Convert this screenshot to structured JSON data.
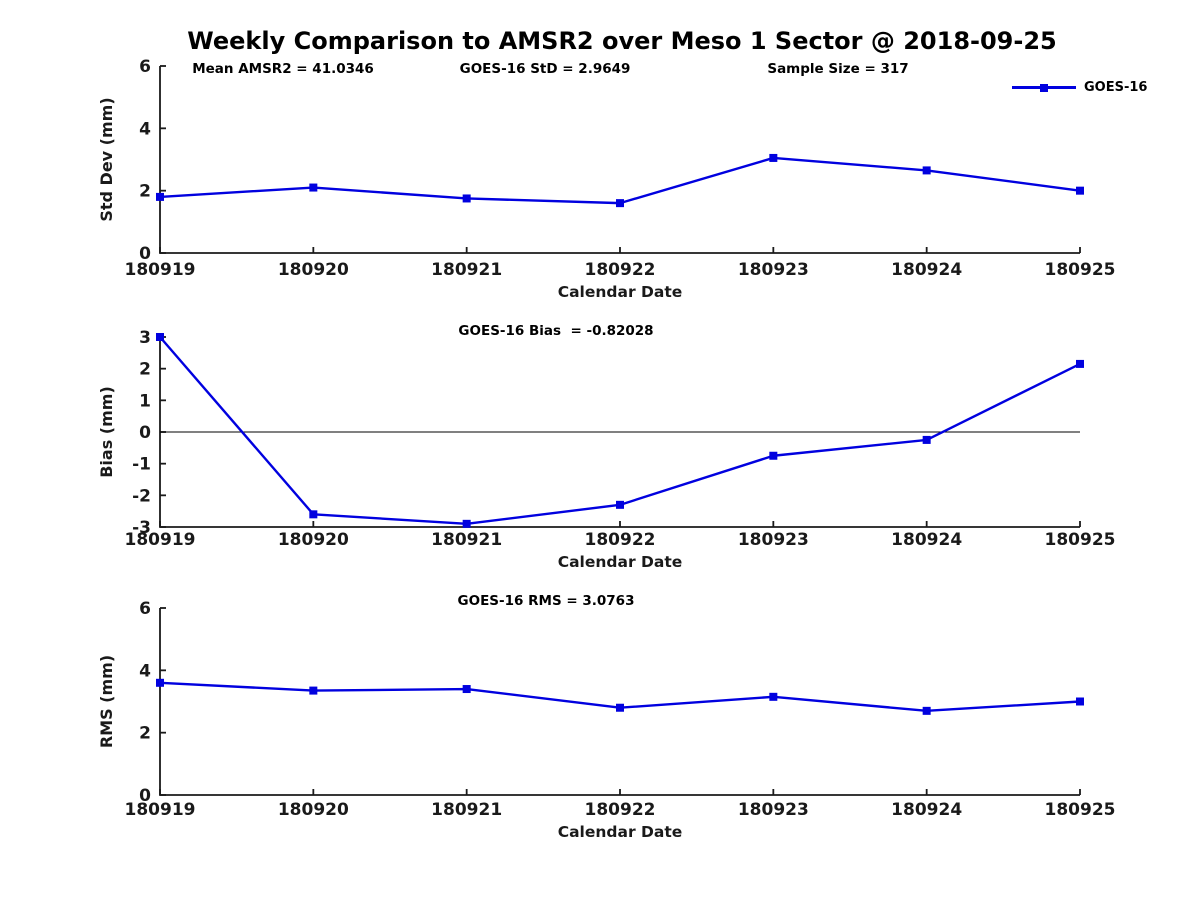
{
  "title": "Weekly Comparison to AMSR2 over Meso 1 Sector @ 2018-09-25",
  "legend": {
    "label": "GOES-16",
    "position": "top-right"
  },
  "colors": {
    "line": "#0101df",
    "axis": "#1a1a1a",
    "zero_line": "#000000",
    "text": "#000000"
  },
  "chart_data": [
    {
      "type": "line",
      "categories": [
        "180919",
        "180920",
        "180921",
        "180922",
        "180923",
        "180924",
        "180925"
      ],
      "series": [
        {
          "name": "GOES-16",
          "marker": "square",
          "values": [
            1.8,
            2.1,
            1.75,
            1.6,
            3.05,
            2.65,
            2.0
          ]
        }
      ],
      "xlabel": "Calendar Date",
      "ylabel": "Std Dev (mm)",
      "ylim": [
        0,
        6
      ],
      "yticks": [
        0,
        2,
        4,
        6
      ],
      "grid": false,
      "legend_position": "top-right",
      "annotations": [
        "Mean AMSR2 = 41.0346",
        "GOES-16 StD = 2.9649",
        "Sample Size = 317"
      ]
    },
    {
      "type": "line",
      "categories": [
        "180919",
        "180920",
        "180921",
        "180922",
        "180923",
        "180924",
        "180925"
      ],
      "series": [
        {
          "name": "GOES-16",
          "marker": "square",
          "values": [
            3.0,
            -2.6,
            -2.9,
            -2.3,
            -0.75,
            -0.25,
            2.15
          ]
        }
      ],
      "xlabel": "Calendar Date",
      "ylabel": "Bias (mm)",
      "ylim": [
        -3,
        3
      ],
      "yticks": [
        3,
        2,
        1,
        0,
        -1,
        -2,
        -3
      ],
      "grid": false,
      "zero_line": true,
      "annotations": [
        "GOES-16 Bias  = -0.82028"
      ]
    },
    {
      "type": "line",
      "categories": [
        "180919",
        "180920",
        "180921",
        "180922",
        "180923",
        "180924",
        "180925"
      ],
      "series": [
        {
          "name": "GOES-16",
          "marker": "square",
          "values": [
            3.6,
            3.35,
            3.4,
            2.8,
            3.15,
            2.7,
            3.0
          ]
        }
      ],
      "xlabel": "Calendar Date",
      "ylabel": "RMS (mm)",
      "ylim": [
        0,
        6
      ],
      "yticks": [
        0,
        2,
        4,
        6
      ],
      "grid": false,
      "annotations": [
        "GOES-16 RMS = 3.0763"
      ]
    }
  ]
}
